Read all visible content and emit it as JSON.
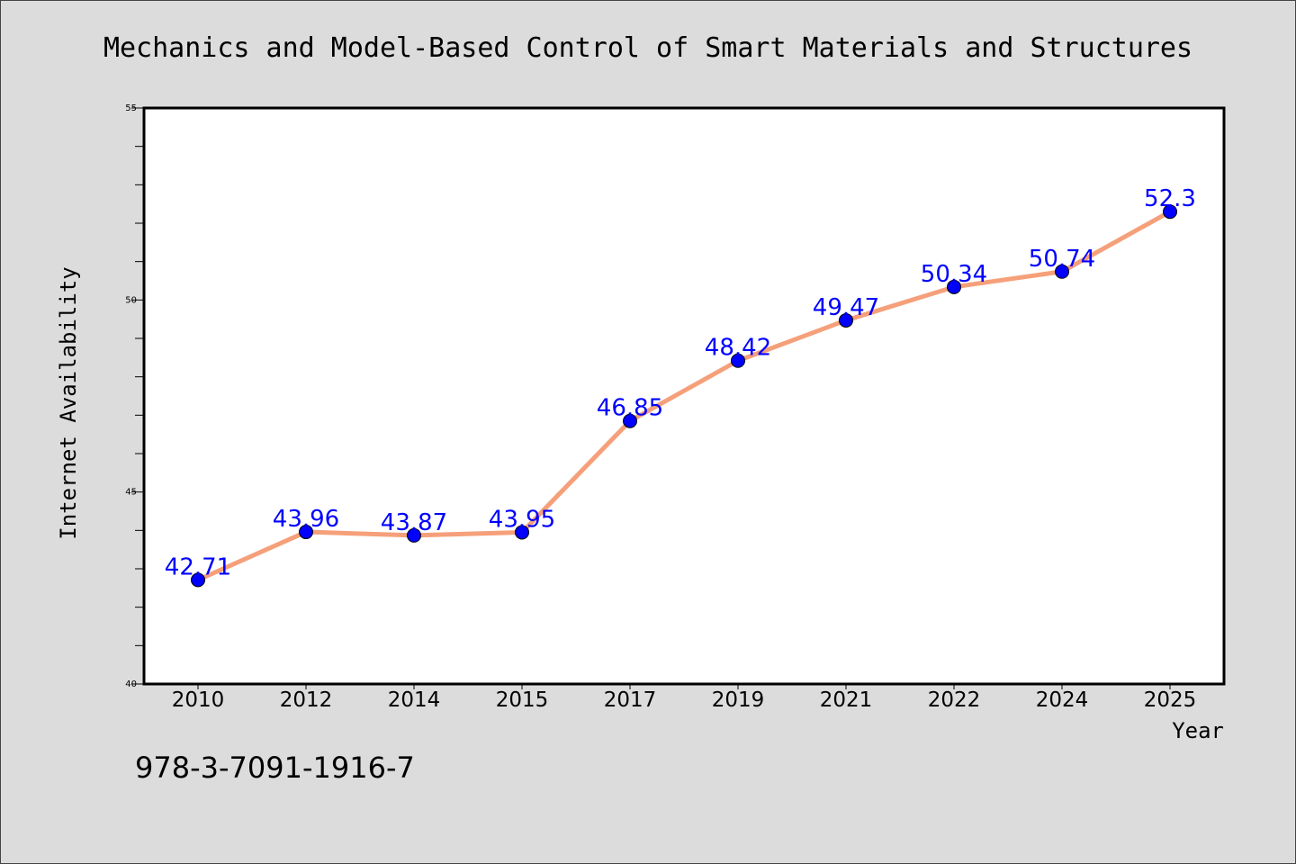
{
  "isbn": "978-3-7091-1916-7",
  "colors": {
    "background": "#dcdcdc",
    "plot_background": "#ffffff",
    "line": "#f5a07a",
    "marker": "#0000ff",
    "data_label": "#0000ff"
  },
  "chart_data": {
    "type": "line",
    "title": "Mechanics and Model-Based Control of Smart Materials and Structures",
    "xlabel": "Year",
    "ylabel": "Internet Availability",
    "categories": [
      "2010",
      "2012",
      "2014",
      "2015",
      "2017",
      "2019",
      "2021",
      "2022",
      "2024",
      "2025"
    ],
    "series": [
      {
        "values": [
          42.71,
          43.96,
          43.87,
          43.95,
          46.85,
          48.42,
          49.47,
          50.34,
          50.74,
          52.3
        ],
        "data_labels": [
          "42.71",
          "43.96",
          "43.87",
          "43.95",
          "46.85",
          "48.42",
          "49.47",
          "50.34",
          "50.74",
          "52.3"
        ]
      }
    ],
    "ylim": [
      40,
      55
    ],
    "yticks": [
      40,
      45,
      50,
      55
    ],
    "y_minor_step": 1,
    "grid": false,
    "legend": "none"
  }
}
